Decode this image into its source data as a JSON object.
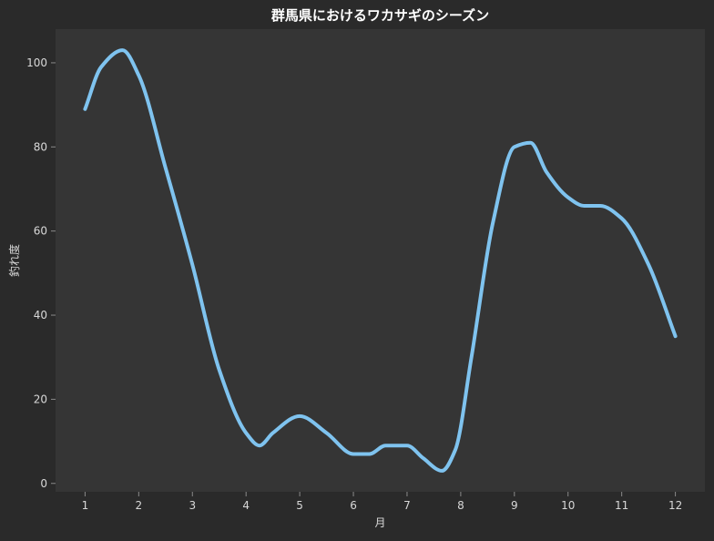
{
  "chart_data": {
    "type": "line",
    "title": "群馬県におけるワカサギのシーズン",
    "xlabel": "月",
    "ylabel": "釣れ度",
    "x": [
      1,
      1.3,
      1.7,
      2,
      2.5,
      3,
      3.5,
      4,
      4.25,
      4.5,
      5,
      5.5,
      6,
      6.3,
      6.6,
      7,
      7.3,
      7.65,
      7.9,
      8.2,
      8.6,
      9,
      9.3,
      9.6,
      10,
      10.3,
      10.6,
      11,
      11.5,
      12
    ],
    "series": [
      {
        "values": [
          89,
          99,
          103,
          97,
          75,
          52,
          27,
          12,
          9,
          12,
          16,
          12,
          7,
          7,
          9,
          9,
          6,
          3,
          8,
          30,
          62,
          80,
          81,
          74,
          68,
          66,
          66,
          63,
          52,
          35
        ]
      }
    ],
    "xticks": [
      "1",
      "2",
      "3",
      "4",
      "5",
      "6",
      "7",
      "8",
      "9",
      "10",
      "11",
      "12"
    ],
    "yticks": [
      "0",
      "20",
      "40",
      "60",
      "80",
      "100"
    ],
    "xlim": [
      0.45,
      12.55
    ],
    "ylim": [
      -2,
      108
    ],
    "grid": false,
    "colors": {
      "background": "#2a2a2a",
      "plot_area": "#353535",
      "line": "#7fc3ef",
      "text": "#d8d8d8",
      "title": "#ffffff",
      "axis": "#8a8a8a"
    }
  }
}
